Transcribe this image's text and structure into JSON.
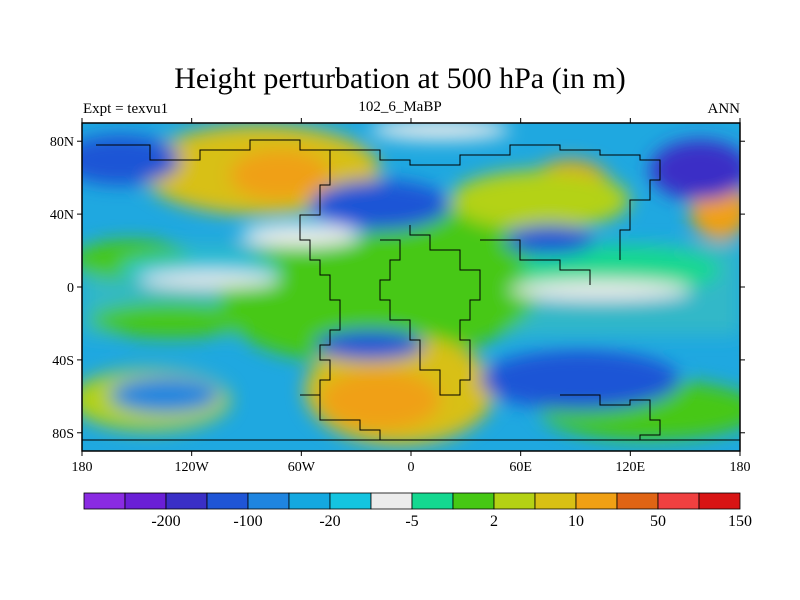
{
  "title": "Height perturbation at 500 hPa (in m)",
  "left_label": "Expt = texvu1",
  "center_label": "102_6_MaBP",
  "right_label": "ANN",
  "map": {
    "lon_range": [
      -180,
      180
    ],
    "lat_range": [
      -90,
      90
    ],
    "lat_ticks": [
      {
        "value": 80,
        "label": "80N"
      },
      {
        "value": 40,
        "label": "40N"
      },
      {
        "value": 0,
        "label": "0"
      },
      {
        "value": -40,
        "label": "40S"
      },
      {
        "value": -80,
        "label": "80S"
      }
    ],
    "lon_ticks": [
      {
        "value": -180,
        "label": "180"
      },
      {
        "value": -120,
        "label": "120W"
      },
      {
        "value": -60,
        "label": "60W"
      },
      {
        "value": 0,
        "label": "0"
      },
      {
        "value": 60,
        "label": "60E"
      },
      {
        "value": 120,
        "label": "120E"
      },
      {
        "value": 180,
        "label": "180"
      }
    ]
  },
  "colorbar": {
    "colors": [
      "#8a2be2",
      "#6a1fd6",
      "#3a2fc6",
      "#1f55d6",
      "#1f85e0",
      "#14a8e0",
      "#14c4e0",
      "#ececec",
      "#14d890",
      "#46c814",
      "#b4d214",
      "#d8c014",
      "#f0a014",
      "#e06414",
      "#f04040",
      "#d81414"
    ],
    "labels": [
      {
        "after_index": 1,
        "text": "-200"
      },
      {
        "after_index": 3,
        "text": "-100"
      },
      {
        "after_index": 5,
        "text": "-20"
      },
      {
        "after_index": 7,
        "text": "-5"
      },
      {
        "after_index": 9,
        "text": "2"
      },
      {
        "after_index": 11,
        "text": "10"
      },
      {
        "after_index": 13,
        "text": "50"
      },
      {
        "after_index": 15,
        "text": "150"
      }
    ]
  }
}
